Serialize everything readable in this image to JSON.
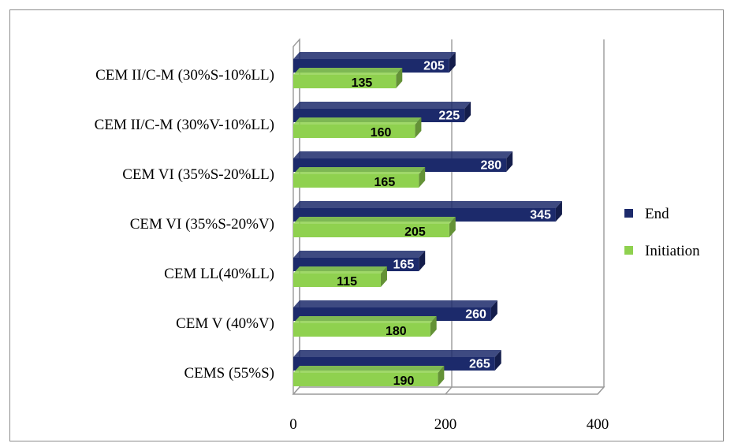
{
  "chart_data": {
    "type": "bar",
    "orientation": "horizontal",
    "categories": [
      "CEMS (55%S)",
      "CEM V (40%V)",
      "CEM LL(40%LL)",
      "CEM VI (35%S-20%V)",
      "CEM VI (35%S-20%LL)",
      "CEM II/C-M (30%V-10%LL)",
      "CEM II/C-M (30%S-10%LL)"
    ],
    "series": [
      {
        "name": "End",
        "values": [
          265,
          260,
          165,
          345,
          280,
          225,
          205
        ],
        "color": "#1c2a6b"
      },
      {
        "name": "Initiation",
        "values": [
          190,
          180,
          115,
          205,
          165,
          160,
          135
        ],
        "color": "#8fd14f"
      }
    ],
    "xlim": [
      0,
      400
    ],
    "xticks": [
      0,
      200,
      400
    ],
    "grid": true,
    "legend": "right",
    "title": "",
    "xlabel": "",
    "ylabel": ""
  }
}
